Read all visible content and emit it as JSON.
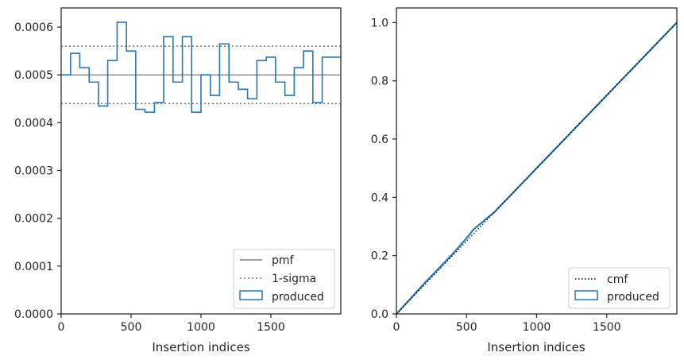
{
  "colors": {
    "produced": "#2878b5",
    "pmf": "#7a7a7a",
    "sigma": "#7a7a7a",
    "cmf": "#000000",
    "axes": "#262626"
  },
  "chart_data": [
    {
      "type": "histogram",
      "xlabel": "Insertion indices",
      "ylabel": "",
      "xlim": [
        0,
        2000
      ],
      "ylim": [
        0,
        0.00064
      ],
      "xticks": [
        0,
        500,
        1000,
        1500
      ],
      "yticks": [
        0,
        0.0001,
        0.0002,
        0.0003,
        0.0004,
        0.0005,
        0.0006
      ],
      "ytick_labels": [
        "0.0000",
        "0.0001",
        "0.0002",
        "0.0003",
        "0.0004",
        "0.0005",
        "0.0006"
      ],
      "legend": [
        "pmf",
        "1-sigma",
        "produced"
      ],
      "legend_position": "bottom-right",
      "pmf": 0.0005,
      "sigma_band": [
        0.00044,
        0.00056
      ],
      "bin_edges": [
        0,
        67,
        133,
        200,
        267,
        333,
        400,
        467,
        533,
        600,
        667,
        733,
        800,
        867,
        933,
        1000,
        1067,
        1133,
        1200,
        1267,
        1333,
        1400,
        1467,
        1533,
        1600,
        1667,
        1733,
        1800,
        1867,
        1933,
        2000
      ],
      "values": [
        0.0005,
        0.000545,
        0.000515,
        0.000485,
        0.000435,
        0.00053,
        0.00061,
        0.00055,
        0.000428,
        0.000422,
        0.000442,
        0.00058,
        0.000485,
        0.00058,
        0.000422,
        0.0005,
        0.000457,
        0.000565,
        0.000485,
        0.00047,
        0.00045,
        0.00053,
        0.000537,
        0.000485,
        0.000457,
        0.000515,
        0.00055,
        0.000442,
        0.000537,
        0.000537
      ]
    },
    {
      "type": "line",
      "xlabel": "Insertion indices",
      "ylabel": "",
      "xlim": [
        0,
        2000
      ],
      "ylim": [
        0,
        1.05
      ],
      "xticks": [
        0,
        500,
        1000,
        1500
      ],
      "yticks": [
        0,
        0.2,
        0.4,
        0.6,
        0.8,
        1.0
      ],
      "ytick_labels": [
        "0.0",
        "0.2",
        "0.4",
        "0.6",
        "0.8",
        "1.0"
      ],
      "legend": [
        "cmf",
        "produced"
      ],
      "legend_position": "bottom-right",
      "cmf": {
        "x": [
          0,
          2000
        ],
        "y": [
          0,
          1.0
        ]
      },
      "produced": {
        "x": [
          0,
          100,
          200,
          300,
          400,
          500,
          550,
          600,
          700,
          800,
          900,
          1000,
          1100,
          1200,
          1300,
          1400,
          1500,
          1600,
          1700,
          1800,
          1900,
          2000
        ],
        "y": [
          0,
          0.052,
          0.105,
          0.155,
          0.205,
          0.26,
          0.29,
          0.31,
          0.35,
          0.4,
          0.45,
          0.5,
          0.55,
          0.6,
          0.65,
          0.7,
          0.75,
          0.8,
          0.85,
          0.9,
          0.95,
          1.0
        ]
      }
    }
  ]
}
